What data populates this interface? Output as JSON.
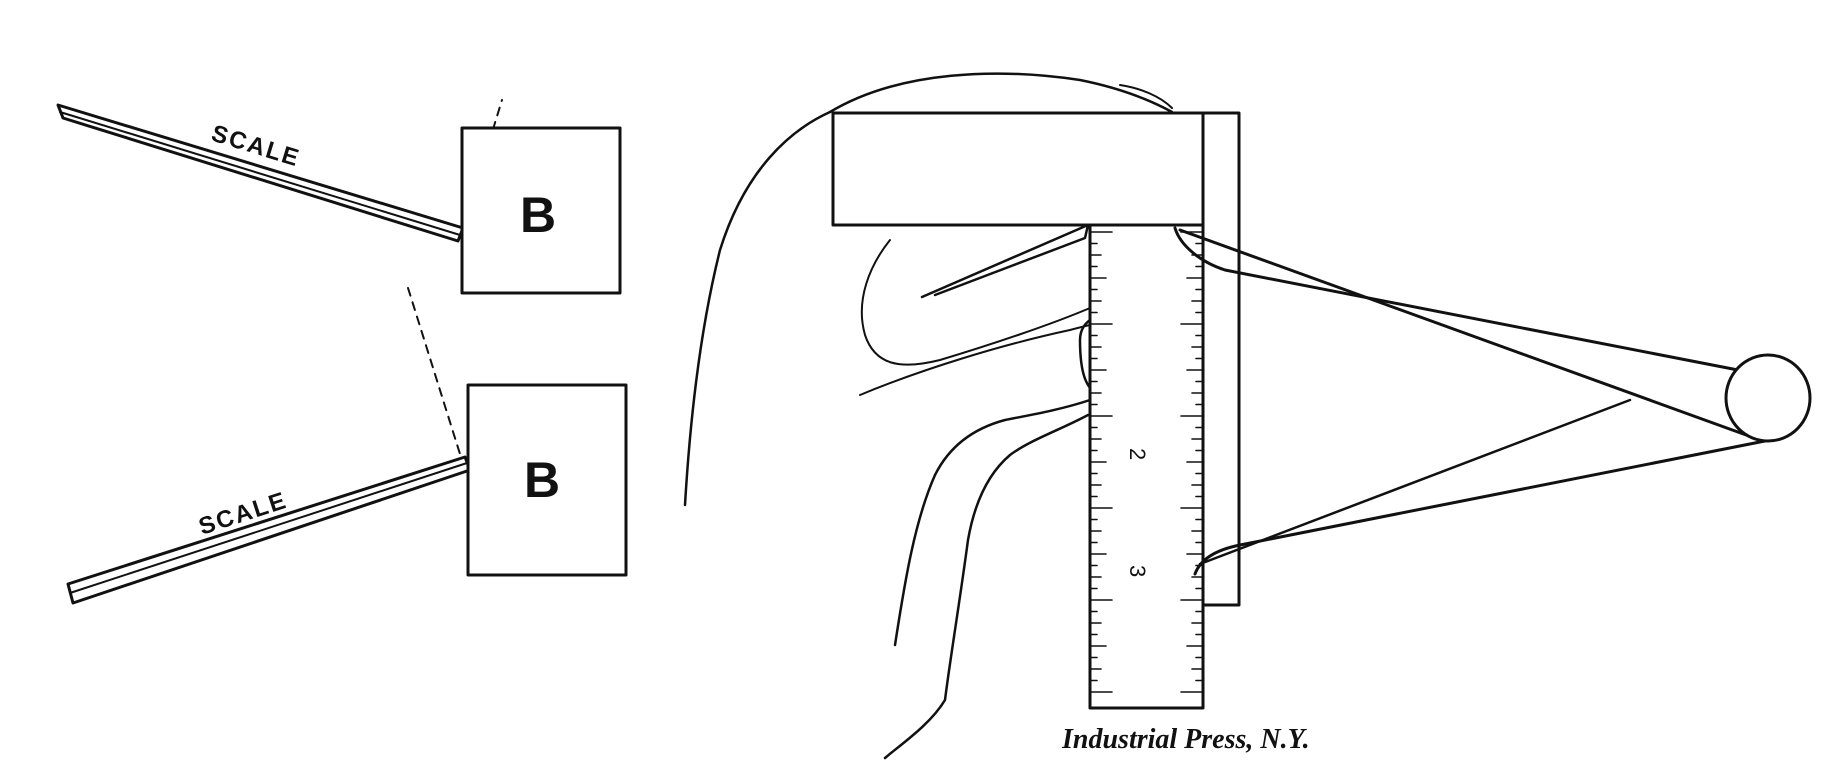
{
  "figure": {
    "left_panel": {
      "upper": {
        "scale_label": "SCALE",
        "block_label": "B"
      },
      "lower": {
        "scale_label": "SCALE",
        "block_label": "B"
      }
    },
    "right_panel": {
      "rule_numbers": [
        "2",
        "3"
      ]
    },
    "credit": "Industrial Press, N.Y."
  },
  "colors": {
    "ink": "#111111",
    "paper": "#ffffff"
  }
}
